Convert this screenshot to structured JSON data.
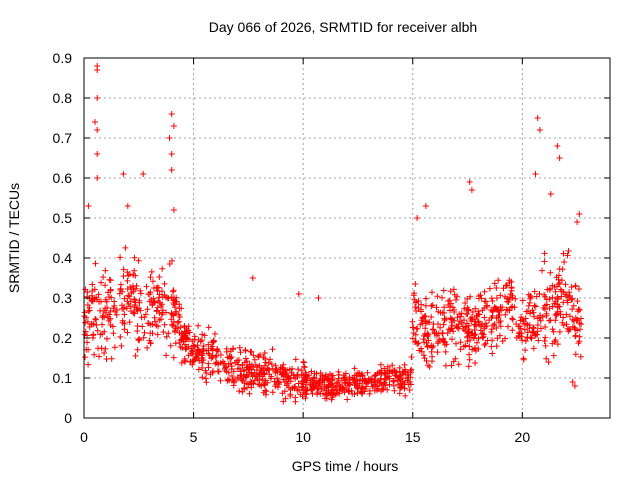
{
  "chart_data": {
    "type": "scatter",
    "title": "Day 066 of 2026, SRMTID for receiver albh",
    "xlabel": "GPS time / hours",
    "ylabel": "SRMTID / TECUs",
    "xlim": [
      0,
      24
    ],
    "ylim": [
      0,
      0.9
    ],
    "xticks": [
      0,
      5,
      10,
      15,
      20
    ],
    "xtick_labels": [
      "0",
      "5",
      "10",
      "15",
      "20"
    ],
    "yticks": [
      0,
      0.1,
      0.2,
      0.3,
      0.4,
      0.5,
      0.6,
      0.7,
      0.8,
      0.9
    ],
    "ytick_labels": [
      "0",
      "0.1",
      "0.2",
      "0.3",
      "0.4",
      "0.5",
      "0.6",
      "0.7",
      "0.8",
      "0.9"
    ],
    "grid": true,
    "marker": "plus",
    "color": "#ff0000",
    "series": [
      {
        "name": "SRMTID",
        "profile_hours": [
          0.0,
          0.5,
          1.0,
          2.0,
          3.0,
          4.0,
          4.5,
          5.0,
          6.0,
          7.0,
          8.0,
          9.0,
          10.0,
          10.5,
          11.0,
          12.0,
          13.0,
          14.0,
          14.9,
          15.0,
          16.0,
          17.0,
          18.0,
          19.0,
          19.5,
          20.0,
          21.0,
          22.0,
          22.7
        ],
        "profile_median": [
          0.25,
          0.28,
          0.26,
          0.3,
          0.27,
          0.28,
          0.2,
          0.17,
          0.15,
          0.12,
          0.11,
          0.1,
          0.09,
          0.08,
          0.08,
          0.085,
          0.09,
          0.1,
          0.1,
          0.22,
          0.22,
          0.25,
          0.22,
          0.26,
          0.3,
          0.22,
          0.28,
          0.3,
          0.22
        ],
        "profile_spread": [
          0.08,
          0.1,
          0.1,
          0.1,
          0.09,
          0.1,
          0.05,
          0.05,
          0.05,
          0.05,
          0.05,
          0.05,
          0.04,
          0.03,
          0.03,
          0.03,
          0.03,
          0.03,
          0.03,
          0.09,
          0.09,
          0.09,
          0.08,
          0.08,
          0.06,
          0.08,
          0.1,
          0.1,
          0.08
        ],
        "peaks": [
          {
            "x": 0.6,
            "y": 0.88
          },
          {
            "x": 0.6,
            "y": 0.87
          },
          {
            "x": 0.6,
            "y": 0.8
          },
          {
            "x": 0.5,
            "y": 0.74
          },
          {
            "x": 0.6,
            "y": 0.72
          },
          {
            "x": 0.6,
            "y": 0.66
          },
          {
            "x": 0.6,
            "y": 0.6
          },
          {
            "x": 0.2,
            "y": 0.53
          },
          {
            "x": 1.8,
            "y": 0.61
          },
          {
            "x": 2.7,
            "y": 0.61
          },
          {
            "x": 2.0,
            "y": 0.53
          },
          {
            "x": 4.0,
            "y": 0.76
          },
          {
            "x": 4.1,
            "y": 0.73
          },
          {
            "x": 3.9,
            "y": 0.7
          },
          {
            "x": 4.0,
            "y": 0.66
          },
          {
            "x": 4.0,
            "y": 0.62
          },
          {
            "x": 4.1,
            "y": 0.52
          },
          {
            "x": 7.7,
            "y": 0.35
          },
          {
            "x": 9.8,
            "y": 0.31
          },
          {
            "x": 10.7,
            "y": 0.3
          },
          {
            "x": 15.2,
            "y": 0.5
          },
          {
            "x": 15.6,
            "y": 0.53
          },
          {
            "x": 17.6,
            "y": 0.59
          },
          {
            "x": 17.7,
            "y": 0.57
          },
          {
            "x": 20.7,
            "y": 0.75
          },
          {
            "x": 20.8,
            "y": 0.72
          },
          {
            "x": 21.6,
            "y": 0.68
          },
          {
            "x": 21.7,
            "y": 0.65
          },
          {
            "x": 20.6,
            "y": 0.61
          },
          {
            "x": 21.3,
            "y": 0.56
          },
          {
            "x": 22.6,
            "y": 0.51
          },
          {
            "x": 22.5,
            "y": 0.49
          },
          {
            "x": 22.3,
            "y": 0.09
          },
          {
            "x": 22.4,
            "y": 0.08
          }
        ]
      }
    ]
  }
}
